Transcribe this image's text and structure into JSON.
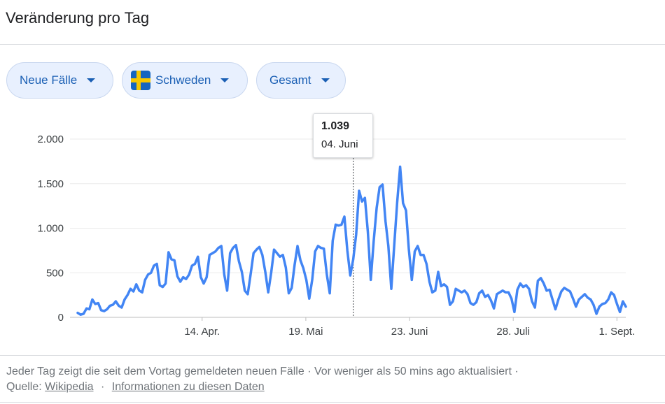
{
  "header": {
    "title": "Veränderung pro Tag"
  },
  "filters": {
    "metric_label": "Neue Fälle",
    "country_label": "Schweden",
    "range_label": "Gesamt",
    "flag_colors": {
      "blue": "#1565c0",
      "yellow": "#f6c700"
    }
  },
  "tooltip": {
    "value": "1.039",
    "date": "04. Juni"
  },
  "footer": {
    "line1": "Jeder Tag zeigt die seit dem Vortag gemeldeten neuen Fälle · Vor weniger als 50 mins ago aktualisiert  ·",
    "source_prefix": "Quelle:",
    "source_link": "Wikipedia",
    "separator": "·",
    "info_link": "Informationen zu diesen Daten"
  },
  "chart_data": {
    "type": "line",
    "title": "",
    "xlabel": "",
    "ylabel": "",
    "ylim": [
      0,
      2000
    ],
    "yticks": [
      0,
      500,
      1000,
      1500,
      2000
    ],
    "ytick_labels": [
      "0",
      "500",
      "1.000",
      "1.500",
      "2.000"
    ],
    "x_start": "2020-03-03",
    "x_end": "2020-09-04",
    "xticks": [
      "2020-04-14",
      "2020-05-19",
      "2020-06-23",
      "2020-07-28",
      "2020-09-01"
    ],
    "xtick_labels": [
      "14. Apr.",
      "19. Mai",
      "23. Juni",
      "28. Juli",
      "1. Sept."
    ],
    "grid": "horizontal",
    "color": "#4285f4",
    "highlight": {
      "x": "2020-06-04",
      "y": 1039
    },
    "series": [
      {
        "values": [
          50,
          30,
          40,
          100,
          90,
          200,
          150,
          160,
          80,
          70,
          90,
          130,
          140,
          180,
          130,
          110,
          200,
          250,
          320,
          290,
          370,
          300,
          280,
          420,
          480,
          500,
          580,
          600,
          360,
          340,
          380,
          730,
          650,
          640,
          460,
          400,
          450,
          430,
          480,
          580,
          600,
          680,
          450,
          380,
          450,
          700,
          720,
          740,
          780,
          800,
          480,
          300,
          720,
          780,
          810,
          630,
          510,
          300,
          260,
          480,
          720,
          760,
          790,
          700,
          510,
          280,
          500,
          760,
          720,
          680,
          700,
          560,
          270,
          330,
          590,
          800,
          640,
          550,
          420,
          210,
          420,
          740,
          800,
          780,
          770,
          480,
          270,
          860,
          1040,
          1030,
          1039,
          1130,
          750,
          470,
          650,
          930,
          1420,
          1300,
          1340,
          960,
          420,
          860,
          1230,
          1460,
          1490,
          1080,
          800,
          320,
          810,
          1290,
          1690,
          1280,
          1200,
          760,
          420,
          740,
          800,
          700,
          700,
          600,
          400,
          280,
          300,
          510,
          350,
          370,
          340,
          140,
          180,
          320,
          300,
          280,
          300,
          260,
          160,
          140,
          170,
          270,
          300,
          230,
          250,
          190,
          100,
          260,
          280,
          300,
          280,
          280,
          210,
          60,
          310,
          380,
          340,
          360,
          320,
          180,
          110,
          410,
          440,
          380,
          300,
          310,
          200,
          90,
          200,
          290,
          330,
          310,
          290,
          210,
          120,
          200,
          230,
          260,
          220,
          200,
          140,
          40,
          120,
          150,
          160,
          200,
          280,
          250,
          150,
          60,
          180,
          120
        ]
      }
    ]
  }
}
